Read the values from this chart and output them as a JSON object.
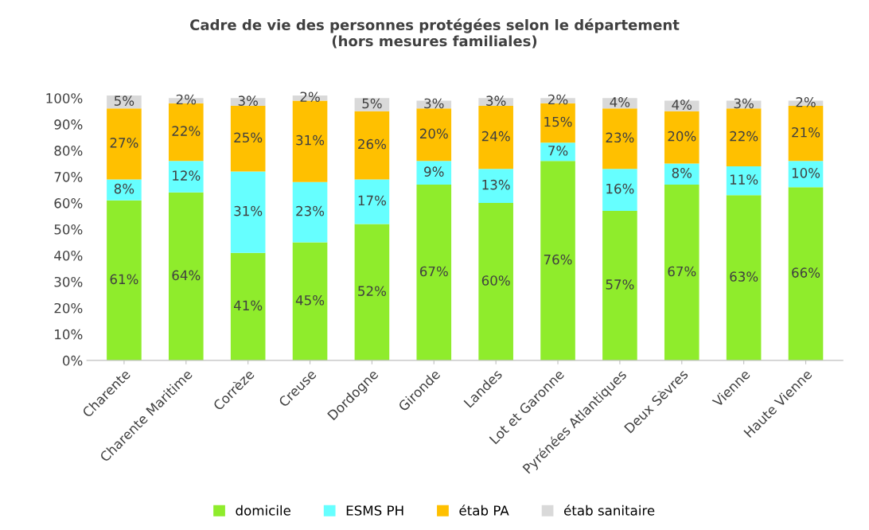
{
  "chart_data": {
    "type": "bar",
    "stacked": true,
    "title": "Cadre de vie des personnes protégées selon le département\n(hors mesures familiales)",
    "categories": [
      "Charente",
      "Charente Maritime",
      "Corrèze",
      "Creuse",
      "Dordogne",
      "Gironde",
      "Landes",
      "Lot et Garonne",
      "Pyrénées Atlantiques",
      "Deux Sèvres",
      "Vienne",
      "Haute Vienne"
    ],
    "series": [
      {
        "name": "domicile",
        "color": "#8fec2c",
        "values": [
          61,
          64,
          41,
          45,
          52,
          67,
          60,
          76,
          57,
          67,
          63,
          66
        ],
        "value_labels": [
          "61%",
          "64%",
          "41%",
          "45%",
          "52%",
          "67%",
          "60%",
          "76%",
          "57%",
          "67%",
          "63%",
          "66%"
        ]
      },
      {
        "name": "ESMS PH",
        "color": "#66ffff",
        "values": [
          8,
          12,
          31,
          23,
          17,
          9,
          13,
          7,
          16,
          8,
          11,
          10
        ],
        "value_labels": [
          "8%",
          "12%",
          "31%",
          "23%",
          "17%",
          "9%",
          "13%",
          "7%",
          "16%",
          "8%",
          "11%",
          "10%"
        ]
      },
      {
        "name": "étab PA",
        "color": "#ffc000",
        "values": [
          27,
          22,
          25,
          31,
          26,
          20,
          24,
          15,
          23,
          20,
          22,
          21
        ],
        "value_labels": [
          "27%",
          "22%",
          "25%",
          "31%",
          "26%",
          "20%",
          "24%",
          "15%",
          "23%",
          "20%",
          "22%",
          "21%"
        ]
      },
      {
        "name": "étab sanitaire",
        "color": "#d9d9d9",
        "values": [
          5,
          2,
          3,
          2,
          5,
          3,
          3,
          2,
          4,
          4,
          3,
          2
        ],
        "value_labels": [
          "5%",
          "2%",
          "3%",
          "2%",
          "5%",
          "3%",
          "3%",
          "2%",
          "4%",
          "4%",
          "3%",
          "2%"
        ]
      }
    ],
    "ylim": [
      0,
      101
    ],
    "yticks": [
      {
        "value": 0,
        "label": "0%"
      },
      {
        "value": 10,
        "label": "10%"
      },
      {
        "value": 20,
        "label": "20%"
      },
      {
        "value": 30,
        "label": "30%"
      },
      {
        "value": 40,
        "label": "40%"
      },
      {
        "value": 50,
        "label": "50%"
      },
      {
        "value": 60,
        "label": "60%"
      },
      {
        "value": 70,
        "label": "70%"
      },
      {
        "value": 80,
        "label": "80%"
      },
      {
        "value": 90,
        "label": "90%"
      },
      {
        "value": 100,
        "label": "100%"
      }
    ],
    "grid": false,
    "legend": "bottom"
  }
}
